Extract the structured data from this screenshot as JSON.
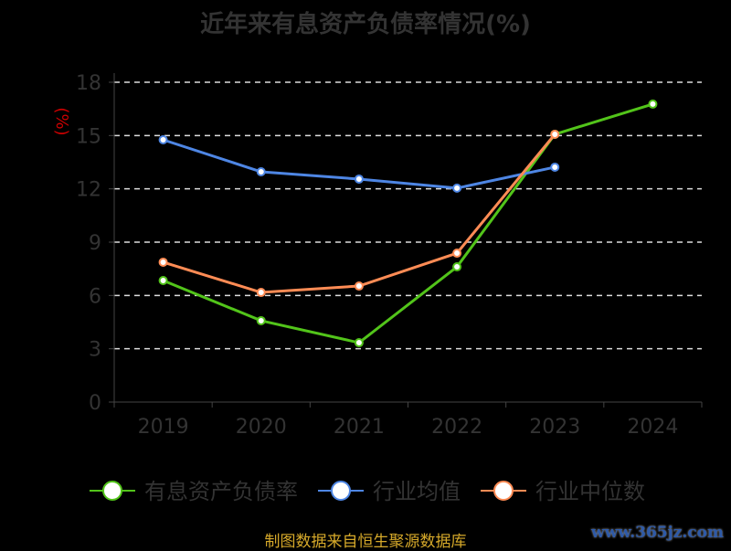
{
  "chart_data": {
    "type": "line",
    "title": "近年来有息资产负债率情况(%)",
    "ylabel": "(%)",
    "xlabel": "",
    "categories": [
      "2019",
      "2020",
      "2021",
      "2022",
      "2023",
      "2024"
    ],
    "ylim": [
      0,
      18
    ],
    "yticks": [
      "0",
      "3",
      "6",
      "9",
      "12",
      "15",
      "18"
    ],
    "grid": true,
    "legend_position": "bottom",
    "series": [
      {
        "name": "有息资产负债率",
        "color": "#52c41a",
        "values": [
          6.84,
          4.58,
          3.34,
          7.61,
          15.07,
          16.77
        ]
      },
      {
        "name": "行业均值",
        "color": "#4e86e4",
        "values": [
          14.76,
          12.96,
          12.55,
          12.04,
          13.22,
          null
        ]
      },
      {
        "name": "行业中位数",
        "color": "#ff8c55",
        "values": [
          7.87,
          6.17,
          6.53,
          8.38,
          15.07,
          null
        ]
      }
    ]
  },
  "footer": "制图数据来自恒生聚源数据库",
  "watermark": "www.365jz.com"
}
